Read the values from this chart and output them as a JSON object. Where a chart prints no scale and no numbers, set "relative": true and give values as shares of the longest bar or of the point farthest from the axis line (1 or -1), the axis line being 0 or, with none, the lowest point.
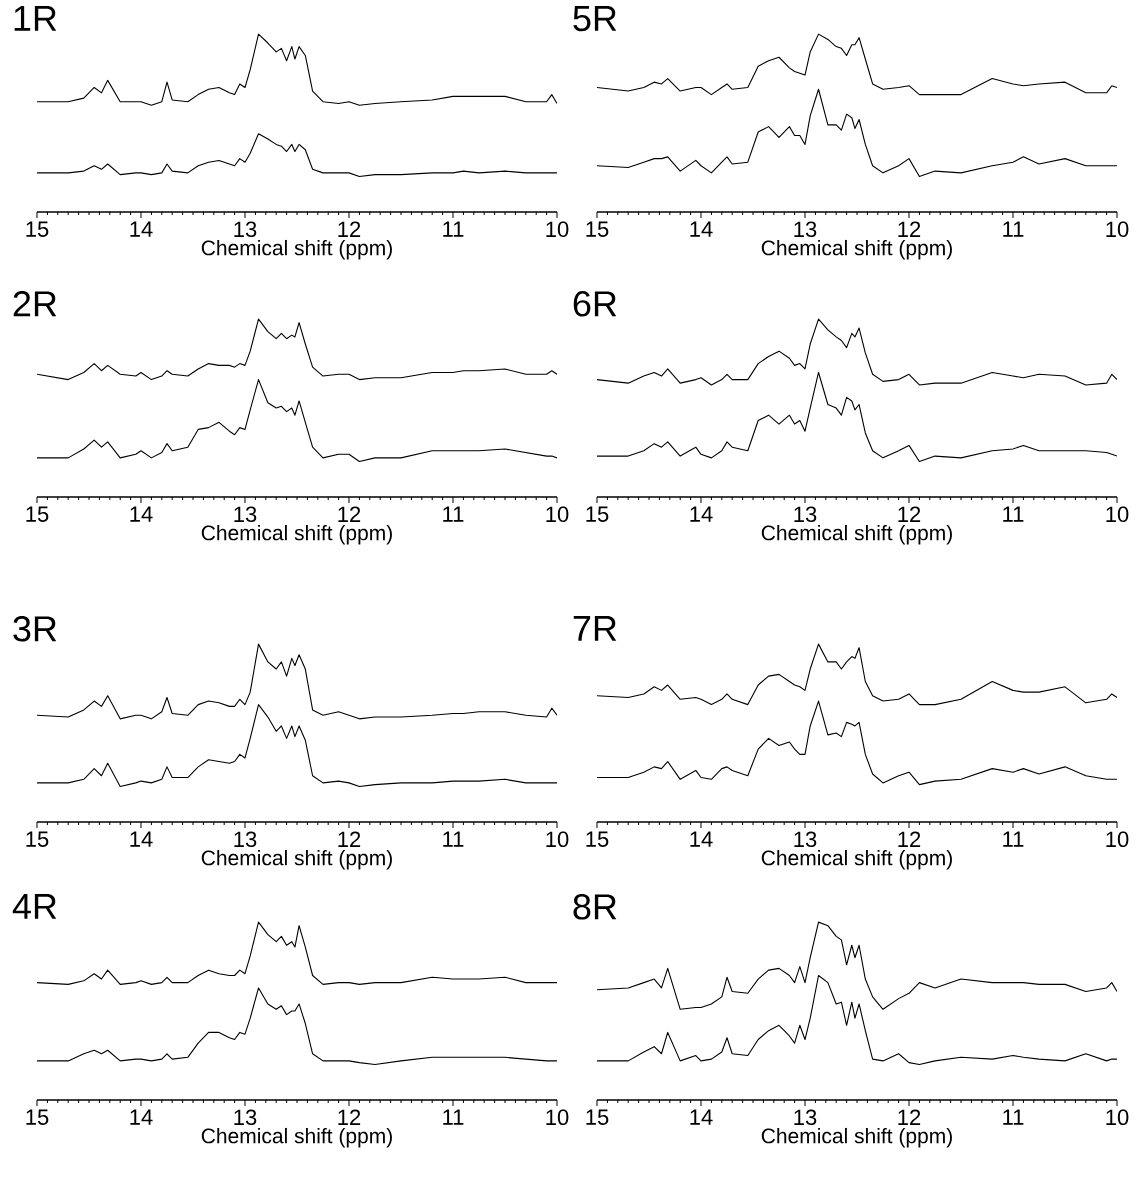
{
  "chart_data": [
    {
      "type": "line",
      "relative": true,
      "title": "1R",
      "xlabel": "Chemical shift (ppm)",
      "xlim": [
        15,
        10
      ],
      "xticks": [
        15,
        14,
        13,
        12,
        11,
        10
      ],
      "x": [
        15,
        14.7,
        14.55,
        14.45,
        14.38,
        14.32,
        14.2,
        14.05,
        14.0,
        13.9,
        13.8,
        13.75,
        13.7,
        13.55,
        13.45,
        13.35,
        13.25,
        13.15,
        13.1,
        13.05,
        13.0,
        12.95,
        12.87,
        12.78,
        12.7,
        12.65,
        12.6,
        12.55,
        12.52,
        12.48,
        12.42,
        12.35,
        12.25,
        12.1,
        12.0,
        11.9,
        11.75,
        11.5,
        11.2,
        11.0,
        10.9,
        10.75,
        10.5,
        10.3,
        10.1,
        10.05,
        10.0
      ],
      "series": [
        {
          "color": "#000000",
          "values": [
            0.62,
            0.62,
            0.64,
            0.7,
            0.67,
            0.74,
            0.62,
            0.62,
            0.62,
            0.6,
            0.62,
            0.73,
            0.63,
            0.62,
            0.66,
            0.69,
            0.7,
            0.67,
            0.66,
            0.72,
            0.7,
            0.8,
            1.0,
            0.95,
            0.9,
            0.92,
            0.85,
            0.93,
            0.86,
            0.93,
            0.88,
            0.68,
            0.62,
            0.61,
            0.62,
            0.6,
            0.61,
            0.62,
            0.63,
            0.65,
            0.65,
            0.65,
            0.65,
            0.62,
            0.62,
            0.66,
            0.61
          ]
        },
        {
          "color": "#000000",
          "values": [
            0.22,
            0.22,
            0.23,
            0.26,
            0.24,
            0.27,
            0.21,
            0.22,
            0.22,
            0.21,
            0.22,
            0.27,
            0.23,
            0.22,
            0.26,
            0.28,
            0.29,
            0.27,
            0.26,
            0.3,
            0.28,
            0.33,
            0.44,
            0.41,
            0.38,
            0.37,
            0.34,
            0.38,
            0.34,
            0.38,
            0.35,
            0.24,
            0.22,
            0.22,
            0.22,
            0.2,
            0.21,
            0.21,
            0.22,
            0.22,
            0.23,
            0.22,
            0.23,
            0.22,
            0.22,
            0.22,
            0.22
          ]
        }
      ]
    },
    {
      "type": "line",
      "relative": true,
      "title": "5R",
      "xlabel": "Chemical shift (ppm)",
      "xlim": [
        15,
        10
      ],
      "xticks": [
        15,
        14,
        13,
        12,
        11,
        10
      ],
      "x": [
        15,
        14.7,
        14.55,
        14.45,
        14.38,
        14.32,
        14.2,
        14.05,
        14.0,
        13.9,
        13.8,
        13.75,
        13.7,
        13.55,
        13.45,
        13.35,
        13.25,
        13.15,
        13.1,
        13.05,
        13.0,
        12.95,
        12.87,
        12.78,
        12.7,
        12.65,
        12.6,
        12.55,
        12.52,
        12.48,
        12.42,
        12.35,
        12.25,
        12.1,
        12.0,
        11.9,
        11.75,
        11.5,
        11.2,
        11.0,
        10.9,
        10.75,
        10.5,
        10.3,
        10.1,
        10.05,
        10.0
      ],
      "series": [
        {
          "color": "#000000",
          "values": [
            0.7,
            0.68,
            0.7,
            0.73,
            0.72,
            0.75,
            0.68,
            0.7,
            0.7,
            0.66,
            0.7,
            0.72,
            0.69,
            0.7,
            0.82,
            0.85,
            0.87,
            0.81,
            0.79,
            0.78,
            0.77,
            0.9,
            1.0,
            0.97,
            0.93,
            0.92,
            0.88,
            0.94,
            0.94,
            0.98,
            0.86,
            0.72,
            0.69,
            0.7,
            0.71,
            0.66,
            0.66,
            0.66,
            0.75,
            0.72,
            0.71,
            0.72,
            0.73,
            0.67,
            0.67,
            0.71,
            0.7
          ]
        },
        {
          "color": "#000000",
          "values": [
            0.26,
            0.25,
            0.28,
            0.3,
            0.3,
            0.31,
            0.23,
            0.29,
            0.26,
            0.22,
            0.28,
            0.31,
            0.27,
            0.28,
            0.45,
            0.48,
            0.42,
            0.48,
            0.43,
            0.43,
            0.38,
            0.54,
            0.69,
            0.49,
            0.49,
            0.46,
            0.55,
            0.53,
            0.47,
            0.52,
            0.38,
            0.26,
            0.22,
            0.26,
            0.3,
            0.2,
            0.23,
            0.22,
            0.26,
            0.28,
            0.31,
            0.27,
            0.3,
            0.26,
            0.26,
            0.26,
            0.26
          ]
        }
      ]
    },
    {
      "type": "line",
      "relative": true,
      "title": "2R",
      "xlabel": "Chemical shift (ppm)",
      "xlim": [
        15,
        10
      ],
      "xticks": [
        15,
        14,
        13,
        12,
        11,
        10
      ],
      "x": [
        15,
        14.7,
        14.55,
        14.45,
        14.38,
        14.32,
        14.2,
        14.05,
        14.0,
        13.9,
        13.8,
        13.75,
        13.7,
        13.55,
        13.45,
        13.35,
        13.25,
        13.15,
        13.1,
        13.05,
        13.0,
        12.95,
        12.87,
        12.78,
        12.7,
        12.65,
        12.6,
        12.55,
        12.52,
        12.48,
        12.42,
        12.35,
        12.25,
        12.1,
        12.0,
        11.9,
        11.75,
        11.5,
        11.2,
        11.0,
        10.9,
        10.75,
        10.5,
        10.3,
        10.1,
        10.05,
        10.0
      ],
      "series": [
        {
          "color": "#000000",
          "values": [
            0.69,
            0.66,
            0.7,
            0.75,
            0.71,
            0.74,
            0.69,
            0.68,
            0.7,
            0.66,
            0.68,
            0.71,
            0.69,
            0.68,
            0.72,
            0.75,
            0.74,
            0.74,
            0.73,
            0.75,
            0.74,
            0.82,
            1.0,
            0.93,
            0.89,
            0.92,
            0.89,
            0.91,
            0.9,
            0.98,
            0.86,
            0.73,
            0.68,
            0.69,
            0.69,
            0.66,
            0.67,
            0.67,
            0.7,
            0.7,
            0.71,
            0.71,
            0.72,
            0.69,
            0.69,
            0.71,
            0.69
          ]
        },
        {
          "color": "#000000",
          "values": [
            0.22,
            0.22,
            0.27,
            0.32,
            0.28,
            0.31,
            0.22,
            0.24,
            0.26,
            0.22,
            0.25,
            0.3,
            0.26,
            0.28,
            0.38,
            0.39,
            0.42,
            0.37,
            0.35,
            0.39,
            0.38,
            0.49,
            0.66,
            0.53,
            0.5,
            0.51,
            0.48,
            0.5,
            0.46,
            0.54,
            0.42,
            0.28,
            0.22,
            0.24,
            0.24,
            0.2,
            0.22,
            0.22,
            0.26,
            0.26,
            0.26,
            0.26,
            0.27,
            0.25,
            0.23,
            0.23,
            0.22
          ]
        }
      ]
    },
    {
      "type": "line",
      "relative": true,
      "title": "6R",
      "xlabel": "Chemical shift (ppm)",
      "xlim": [
        15,
        10
      ],
      "xticks": [
        15,
        14,
        13,
        12,
        11,
        10
      ],
      "x": [
        15,
        14.7,
        14.55,
        14.45,
        14.38,
        14.32,
        14.2,
        14.05,
        14.0,
        13.9,
        13.8,
        13.75,
        13.7,
        13.55,
        13.45,
        13.35,
        13.25,
        13.15,
        13.1,
        13.05,
        13.0,
        12.95,
        12.87,
        12.78,
        12.7,
        12.65,
        12.6,
        12.55,
        12.52,
        12.48,
        12.42,
        12.35,
        12.25,
        12.1,
        12.0,
        11.9,
        11.75,
        11.5,
        11.2,
        11.0,
        10.9,
        10.75,
        10.5,
        10.3,
        10.1,
        10.05,
        10.0
      ],
      "series": [
        {
          "color": "#000000",
          "values": [
            0.66,
            0.64,
            0.68,
            0.7,
            0.68,
            0.72,
            0.64,
            0.66,
            0.67,
            0.63,
            0.66,
            0.69,
            0.66,
            0.66,
            0.75,
            0.79,
            0.82,
            0.78,
            0.74,
            0.75,
            0.72,
            0.86,
            1.0,
            0.94,
            0.9,
            0.88,
            0.84,
            0.92,
            0.9,
            0.95,
            0.81,
            0.69,
            0.65,
            0.66,
            0.69,
            0.63,
            0.64,
            0.64,
            0.7,
            0.68,
            0.67,
            0.69,
            0.68,
            0.63,
            0.64,
            0.69,
            0.66
          ]
        },
        {
          "color": "#000000",
          "values": [
            0.23,
            0.23,
            0.26,
            0.3,
            0.28,
            0.31,
            0.23,
            0.28,
            0.24,
            0.22,
            0.26,
            0.31,
            0.28,
            0.26,
            0.43,
            0.46,
            0.41,
            0.46,
            0.41,
            0.43,
            0.37,
            0.5,
            0.7,
            0.52,
            0.5,
            0.46,
            0.56,
            0.54,
            0.49,
            0.52,
            0.36,
            0.26,
            0.22,
            0.26,
            0.29,
            0.2,
            0.23,
            0.22,
            0.26,
            0.27,
            0.29,
            0.26,
            0.26,
            0.26,
            0.25,
            0.24,
            0.23
          ]
        }
      ]
    },
    {
      "type": "line",
      "relative": true,
      "title": "3R",
      "xlabel": "Chemical shift (ppm)",
      "xlim": [
        15,
        10
      ],
      "xticks": [
        15,
        14,
        13,
        12,
        11,
        10
      ],
      "x": [
        15,
        14.7,
        14.55,
        14.45,
        14.38,
        14.32,
        14.2,
        14.05,
        14.0,
        13.9,
        13.8,
        13.75,
        13.7,
        13.55,
        13.45,
        13.35,
        13.25,
        13.15,
        13.1,
        13.05,
        13.0,
        12.95,
        12.87,
        12.78,
        12.7,
        12.65,
        12.6,
        12.55,
        12.52,
        12.48,
        12.42,
        12.35,
        12.25,
        12.1,
        12.0,
        11.9,
        11.75,
        11.5,
        11.2,
        11.0,
        10.9,
        10.75,
        10.5,
        10.3,
        10.1,
        10.05,
        10.0
      ],
      "series": [
        {
          "color": "#000000",
          "values": [
            0.6,
            0.59,
            0.63,
            0.68,
            0.65,
            0.71,
            0.58,
            0.6,
            0.6,
            0.58,
            0.62,
            0.7,
            0.61,
            0.6,
            0.66,
            0.68,
            0.67,
            0.65,
            0.65,
            0.69,
            0.66,
            0.73,
            1.0,
            0.9,
            0.86,
            0.9,
            0.82,
            0.92,
            0.88,
            0.94,
            0.86,
            0.63,
            0.6,
            0.62,
            0.6,
            0.58,
            0.59,
            0.59,
            0.6,
            0.61,
            0.61,
            0.62,
            0.62,
            0.6,
            0.59,
            0.64,
            0.6
          ]
        },
        {
          "color": "#000000",
          "values": [
            0.22,
            0.22,
            0.24,
            0.3,
            0.26,
            0.33,
            0.2,
            0.22,
            0.23,
            0.22,
            0.24,
            0.31,
            0.25,
            0.25,
            0.31,
            0.35,
            0.34,
            0.33,
            0.34,
            0.38,
            0.36,
            0.47,
            0.66,
            0.59,
            0.51,
            0.54,
            0.47,
            0.54,
            0.48,
            0.54,
            0.46,
            0.26,
            0.22,
            0.23,
            0.22,
            0.2,
            0.21,
            0.22,
            0.22,
            0.23,
            0.23,
            0.23,
            0.24,
            0.22,
            0.22,
            0.22,
            0.22
          ]
        }
      ]
    },
    {
      "type": "line",
      "relative": true,
      "title": "7R",
      "xlabel": "Chemical shift (ppm)",
      "xlim": [
        15,
        10
      ],
      "xticks": [
        15,
        14,
        13,
        12,
        11,
        10
      ],
      "x": [
        15,
        14.7,
        14.55,
        14.45,
        14.38,
        14.32,
        14.2,
        14.05,
        14.0,
        13.9,
        13.8,
        13.75,
        13.7,
        13.55,
        13.45,
        13.35,
        13.25,
        13.15,
        13.1,
        13.05,
        13.0,
        12.95,
        12.87,
        12.78,
        12.7,
        12.65,
        12.6,
        12.55,
        12.52,
        12.48,
        12.42,
        12.35,
        12.25,
        12.1,
        12.0,
        11.9,
        11.75,
        11.5,
        11.2,
        11.0,
        10.9,
        10.75,
        10.5,
        10.3,
        10.1,
        10.05,
        10.0
      ],
      "series": [
        {
          "color": "#000000",
          "values": [
            0.71,
            0.7,
            0.72,
            0.76,
            0.74,
            0.77,
            0.69,
            0.7,
            0.69,
            0.66,
            0.69,
            0.72,
            0.69,
            0.66,
            0.77,
            0.82,
            0.83,
            0.79,
            0.77,
            0.76,
            0.74,
            0.86,
            1.0,
            0.9,
            0.9,
            0.86,
            0.9,
            0.93,
            0.92,
            0.98,
            0.79,
            0.71,
            0.68,
            0.69,
            0.72,
            0.66,
            0.66,
            0.69,
            0.79,
            0.74,
            0.73,
            0.73,
            0.76,
            0.67,
            0.69,
            0.72,
            0.7
          ]
        },
        {
          "color": "#000000",
          "values": [
            0.25,
            0.25,
            0.28,
            0.31,
            0.3,
            0.34,
            0.24,
            0.29,
            0.25,
            0.24,
            0.3,
            0.31,
            0.29,
            0.26,
            0.41,
            0.47,
            0.43,
            0.45,
            0.41,
            0.38,
            0.38,
            0.54,
            0.68,
            0.49,
            0.5,
            0.48,
            0.56,
            0.55,
            0.54,
            0.56,
            0.38,
            0.27,
            0.22,
            0.26,
            0.28,
            0.21,
            0.23,
            0.24,
            0.3,
            0.28,
            0.3,
            0.27,
            0.31,
            0.26,
            0.24,
            0.24,
            0.24
          ]
        }
      ]
    },
    {
      "type": "line",
      "relative": true,
      "title": "4R",
      "xlabel": "Chemical shift (ppm)",
      "xlim": [
        15,
        10
      ],
      "xticks": [
        15,
        14,
        13,
        12,
        11,
        10
      ],
      "x": [
        15,
        14.7,
        14.55,
        14.45,
        14.38,
        14.32,
        14.2,
        14.05,
        14.0,
        13.9,
        13.8,
        13.75,
        13.7,
        13.55,
        13.45,
        13.35,
        13.25,
        13.15,
        13.1,
        13.05,
        13.0,
        12.95,
        12.87,
        12.78,
        12.7,
        12.65,
        12.6,
        12.55,
        12.52,
        12.48,
        12.42,
        12.35,
        12.25,
        12.1,
        12.0,
        11.9,
        11.75,
        11.5,
        11.2,
        11.0,
        10.9,
        10.75,
        10.5,
        10.3,
        10.1,
        10.05,
        10.0
      ],
      "series": [
        {
          "color": "#000000",
          "values": [
            0.66,
            0.65,
            0.67,
            0.71,
            0.68,
            0.73,
            0.65,
            0.66,
            0.67,
            0.65,
            0.66,
            0.69,
            0.66,
            0.66,
            0.7,
            0.73,
            0.71,
            0.7,
            0.7,
            0.73,
            0.71,
            0.81,
            1.0,
            0.93,
            0.89,
            0.92,
            0.87,
            0.89,
            0.86,
            0.98,
            0.86,
            0.7,
            0.65,
            0.66,
            0.66,
            0.65,
            0.66,
            0.66,
            0.69,
            0.68,
            0.68,
            0.68,
            0.69,
            0.66,
            0.66,
            0.66,
            0.66
          ]
        },
        {
          "color": "#000000",
          "values": [
            0.22,
            0.22,
            0.26,
            0.28,
            0.26,
            0.28,
            0.22,
            0.23,
            0.23,
            0.22,
            0.23,
            0.26,
            0.23,
            0.24,
            0.32,
            0.38,
            0.38,
            0.35,
            0.34,
            0.38,
            0.37,
            0.46,
            0.63,
            0.54,
            0.51,
            0.53,
            0.48,
            0.5,
            0.5,
            0.54,
            0.43,
            0.26,
            0.22,
            0.22,
            0.22,
            0.21,
            0.2,
            0.22,
            0.24,
            0.24,
            0.24,
            0.24,
            0.24,
            0.23,
            0.22,
            0.22,
            0.22
          ]
        }
      ]
    },
    {
      "type": "line",
      "relative": true,
      "title": "8R",
      "xlabel": "Chemical shift (ppm)",
      "xlim": [
        15,
        10
      ],
      "xticks": [
        15,
        14,
        13,
        12,
        11,
        10
      ],
      "x": [
        15,
        14.7,
        14.55,
        14.45,
        14.38,
        14.32,
        14.2,
        14.05,
        14.0,
        13.9,
        13.8,
        13.75,
        13.7,
        13.55,
        13.45,
        13.35,
        13.25,
        13.15,
        13.1,
        13.05,
        13.0,
        12.95,
        12.87,
        12.78,
        12.7,
        12.65,
        12.6,
        12.55,
        12.52,
        12.48,
        12.42,
        12.35,
        12.25,
        12.1,
        12.0,
        11.9,
        11.75,
        11.5,
        11.2,
        11.0,
        10.9,
        10.75,
        10.5,
        10.3,
        10.1,
        10.05,
        10.0
      ],
      "series": [
        {
          "color": "#000000",
          "values": [
            0.62,
            0.63,
            0.66,
            0.68,
            0.63,
            0.74,
            0.51,
            0.52,
            0.52,
            0.54,
            0.58,
            0.69,
            0.61,
            0.6,
            0.68,
            0.73,
            0.74,
            0.7,
            0.66,
            0.75,
            0.66,
            0.8,
            1.0,
            0.98,
            0.92,
            0.9,
            0.76,
            0.87,
            0.8,
            0.87,
            0.68,
            0.58,
            0.51,
            0.57,
            0.6,
            0.66,
            0.63,
            0.68,
            0.66,
            0.66,
            0.66,
            0.65,
            0.65,
            0.61,
            0.63,
            0.66,
            0.61
          ]
        },
        {
          "color": "#000000",
          "values": [
            0.22,
            0.22,
            0.27,
            0.3,
            0.26,
            0.38,
            0.22,
            0.25,
            0.22,
            0.23,
            0.27,
            0.35,
            0.26,
            0.25,
            0.34,
            0.39,
            0.42,
            0.36,
            0.32,
            0.42,
            0.34,
            0.46,
            0.7,
            0.66,
            0.54,
            0.55,
            0.42,
            0.55,
            0.46,
            0.54,
            0.39,
            0.23,
            0.22,
            0.26,
            0.21,
            0.2,
            0.22,
            0.24,
            0.23,
            0.25,
            0.24,
            0.23,
            0.22,
            0.26,
            0.22,
            0.23,
            0.23
          ]
        }
      ]
    }
  ]
}
